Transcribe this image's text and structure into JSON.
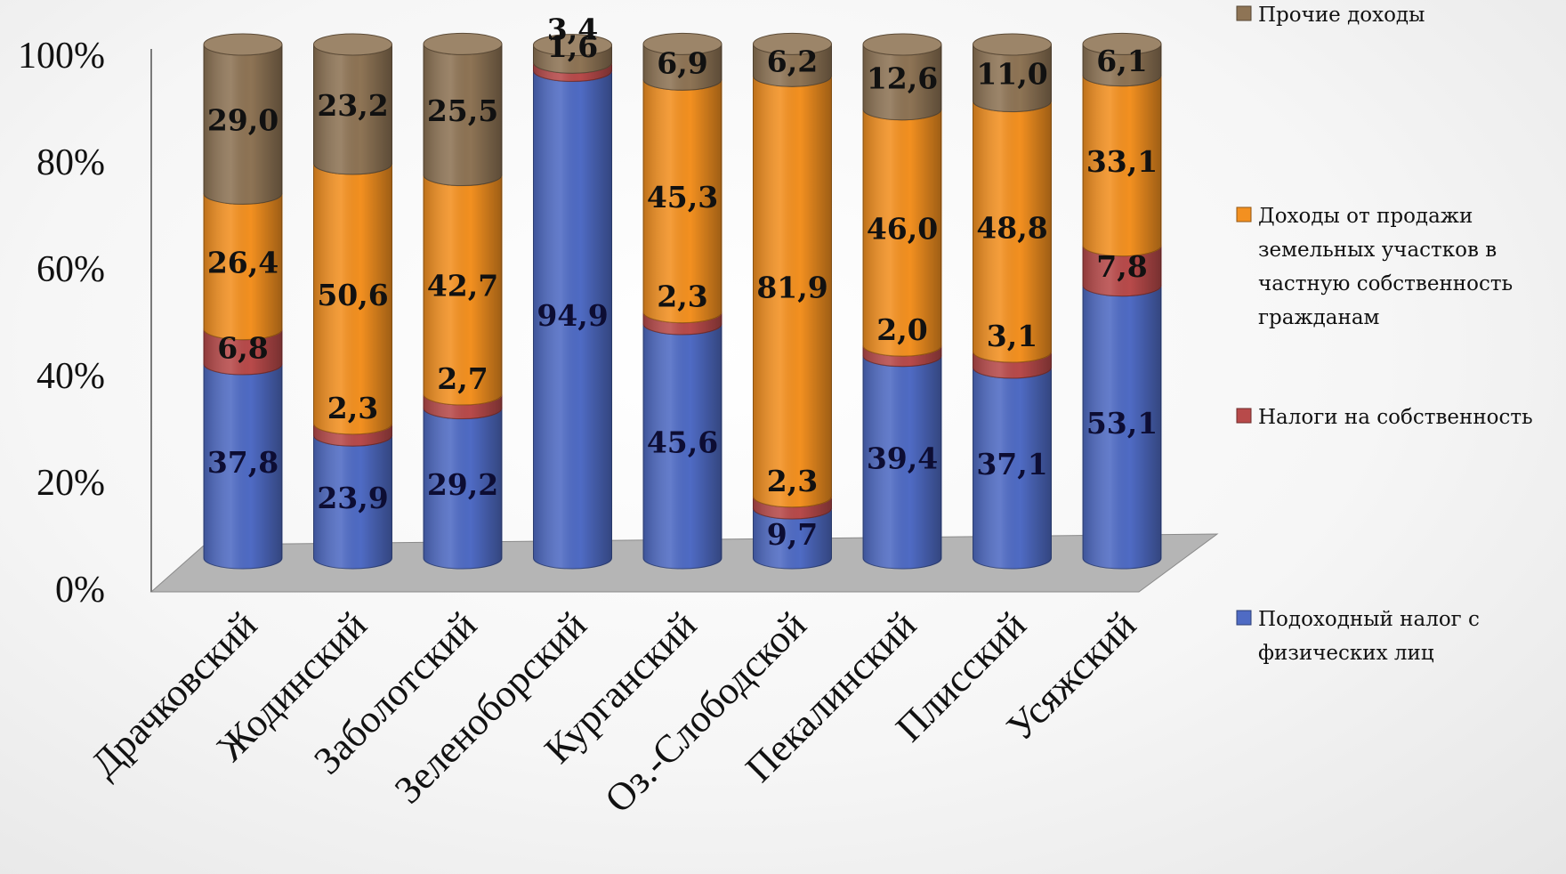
{
  "chart_data": {
    "type": "bar",
    "stacked": true,
    "percent_stacked": true,
    "three_d": true,
    "categories": [
      "Драчковский",
      "Жодинский",
      "Заболотский",
      "Зеленоборский",
      "Курганский",
      "Оз.-Слободской",
      "Пекалинский",
      "Плисский",
      "Усяжский"
    ],
    "series": [
      {
        "name": "Подоходный налог с физических лиц",
        "values": [
          37.8,
          23.9,
          29.2,
          94.9,
          45.6,
          9.7,
          39.4,
          37.1,
          53.1
        ],
        "labels": [
          "37,8",
          "23,9",
          "29,2",
          "94,9",
          "45,6",
          "9,7",
          "39,4",
          "37,1",
          "53,1"
        ],
        "color": "#4F6BC4"
      },
      {
        "name": "Налоги на собственность",
        "values": [
          6.8,
          2.3,
          2.7,
          1.6,
          2.3,
          2.3,
          2.0,
          3.1,
          7.8
        ],
        "labels": [
          "6,8",
          "2,3",
          "2,7",
          "1,6",
          "2,3",
          "2,3",
          "2,0",
          "3,1",
          "7,8"
        ],
        "color": "#B84A4A"
      },
      {
        "name": "Доходы от продажи земельных участков в частную собственность гражданам",
        "values": [
          26.4,
          50.6,
          42.7,
          0,
          45.3,
          81.9,
          46.0,
          48.8,
          33.1
        ],
        "labels": [
          "26,4",
          "50,6",
          "42,7",
          "",
          "45,3",
          "81,9",
          "46,0",
          "48,8",
          "33,1"
        ],
        "color": "#F39020"
      },
      {
        "name": "Прочие доходы",
        "values": [
          29.0,
          23.2,
          25.5,
          3.4,
          6.9,
          6.2,
          12.6,
          11.0,
          6.1
        ],
        "labels": [
          "29,0",
          "23,2",
          "25,5",
          "3,4",
          "6,9",
          "6,2",
          "12,6",
          "11,0",
          "6,1"
        ],
        "color": "#8E7455"
      }
    ],
    "y_ticks": [
      "0%",
      "20%",
      "40%",
      "60%",
      "80%",
      "100%"
    ],
    "ylim": [
      0,
      100
    ],
    "legend_position": "right",
    "legend_lines": [
      [
        "Прочие доходы"
      ],
      [
        "Доходы от продажи",
        "земельных участков в",
        "частную собственность",
        "гражданам"
      ],
      [
        "Налоги на собственность"
      ],
      [
        "Подоходный налог с",
        "физических лиц"
      ]
    ],
    "legend_order": [
      3,
      2,
      1,
      0
    ],
    "grid": false
  }
}
